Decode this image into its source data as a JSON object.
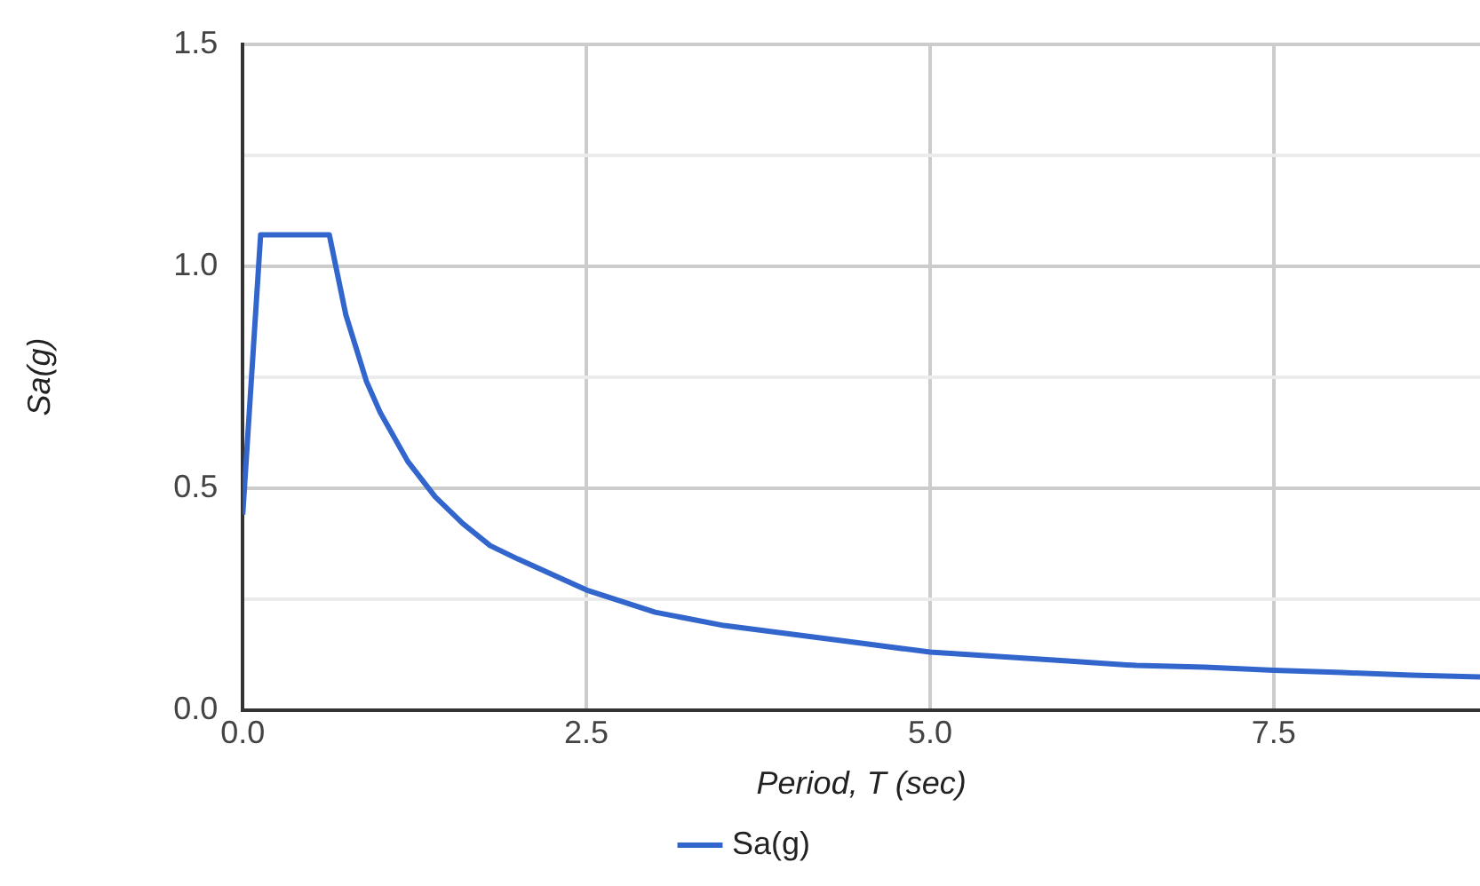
{
  "chart_data": {
    "type": "line",
    "xlabel": "Period, T (sec)",
    "ylabel": "Sa(g)",
    "xlim": [
      0,
      9
    ],
    "xticks": [
      {
        "value": 0,
        "label": "0.0"
      },
      2.5,
      {
        "value": 5,
        "label": "5.0"
      },
      7.5
    ],
    "ylim": [
      0,
      1.5
    ],
    "yticks": [
      {
        "value": 0,
        "label": "0.0"
      },
      {
        "value": 0.25,
        "label": null
      },
      0.5,
      {
        "value": 0.75,
        "label": null
      },
      {
        "value": 1,
        "label": "1.0"
      },
      {
        "value": 1.25,
        "label": null
      },
      1.5
    ],
    "grid": true,
    "legend": "bottom",
    "marker": "none",
    "line_style": "solid",
    "series": [
      {
        "name": "Sa(g)",
        "color": "#3366cc",
        "x": [
          0,
          0.13,
          0.63,
          0.75,
          0.9,
          1.0,
          1.2,
          1.4,
          1.6,
          1.8,
          2.0,
          2.5,
          3,
          3.5,
          4,
          4.5,
          5,
          5.5,
          6,
          6.5,
          7,
          7.5,
          8,
          8.5,
          9
        ],
        "values": [
          0.44,
          1.07,
          1.07,
          0.89,
          0.74,
          0.67,
          0.56,
          0.48,
          0.42,
          0.37,
          0.34,
          0.27,
          0.22,
          0.19,
          0.17,
          0.15,
          0.13,
          0.12,
          0.11,
          0.1,
          0.096,
          0.089,
          0.084,
          0.078,
          0.074
        ]
      }
    ]
  }
}
